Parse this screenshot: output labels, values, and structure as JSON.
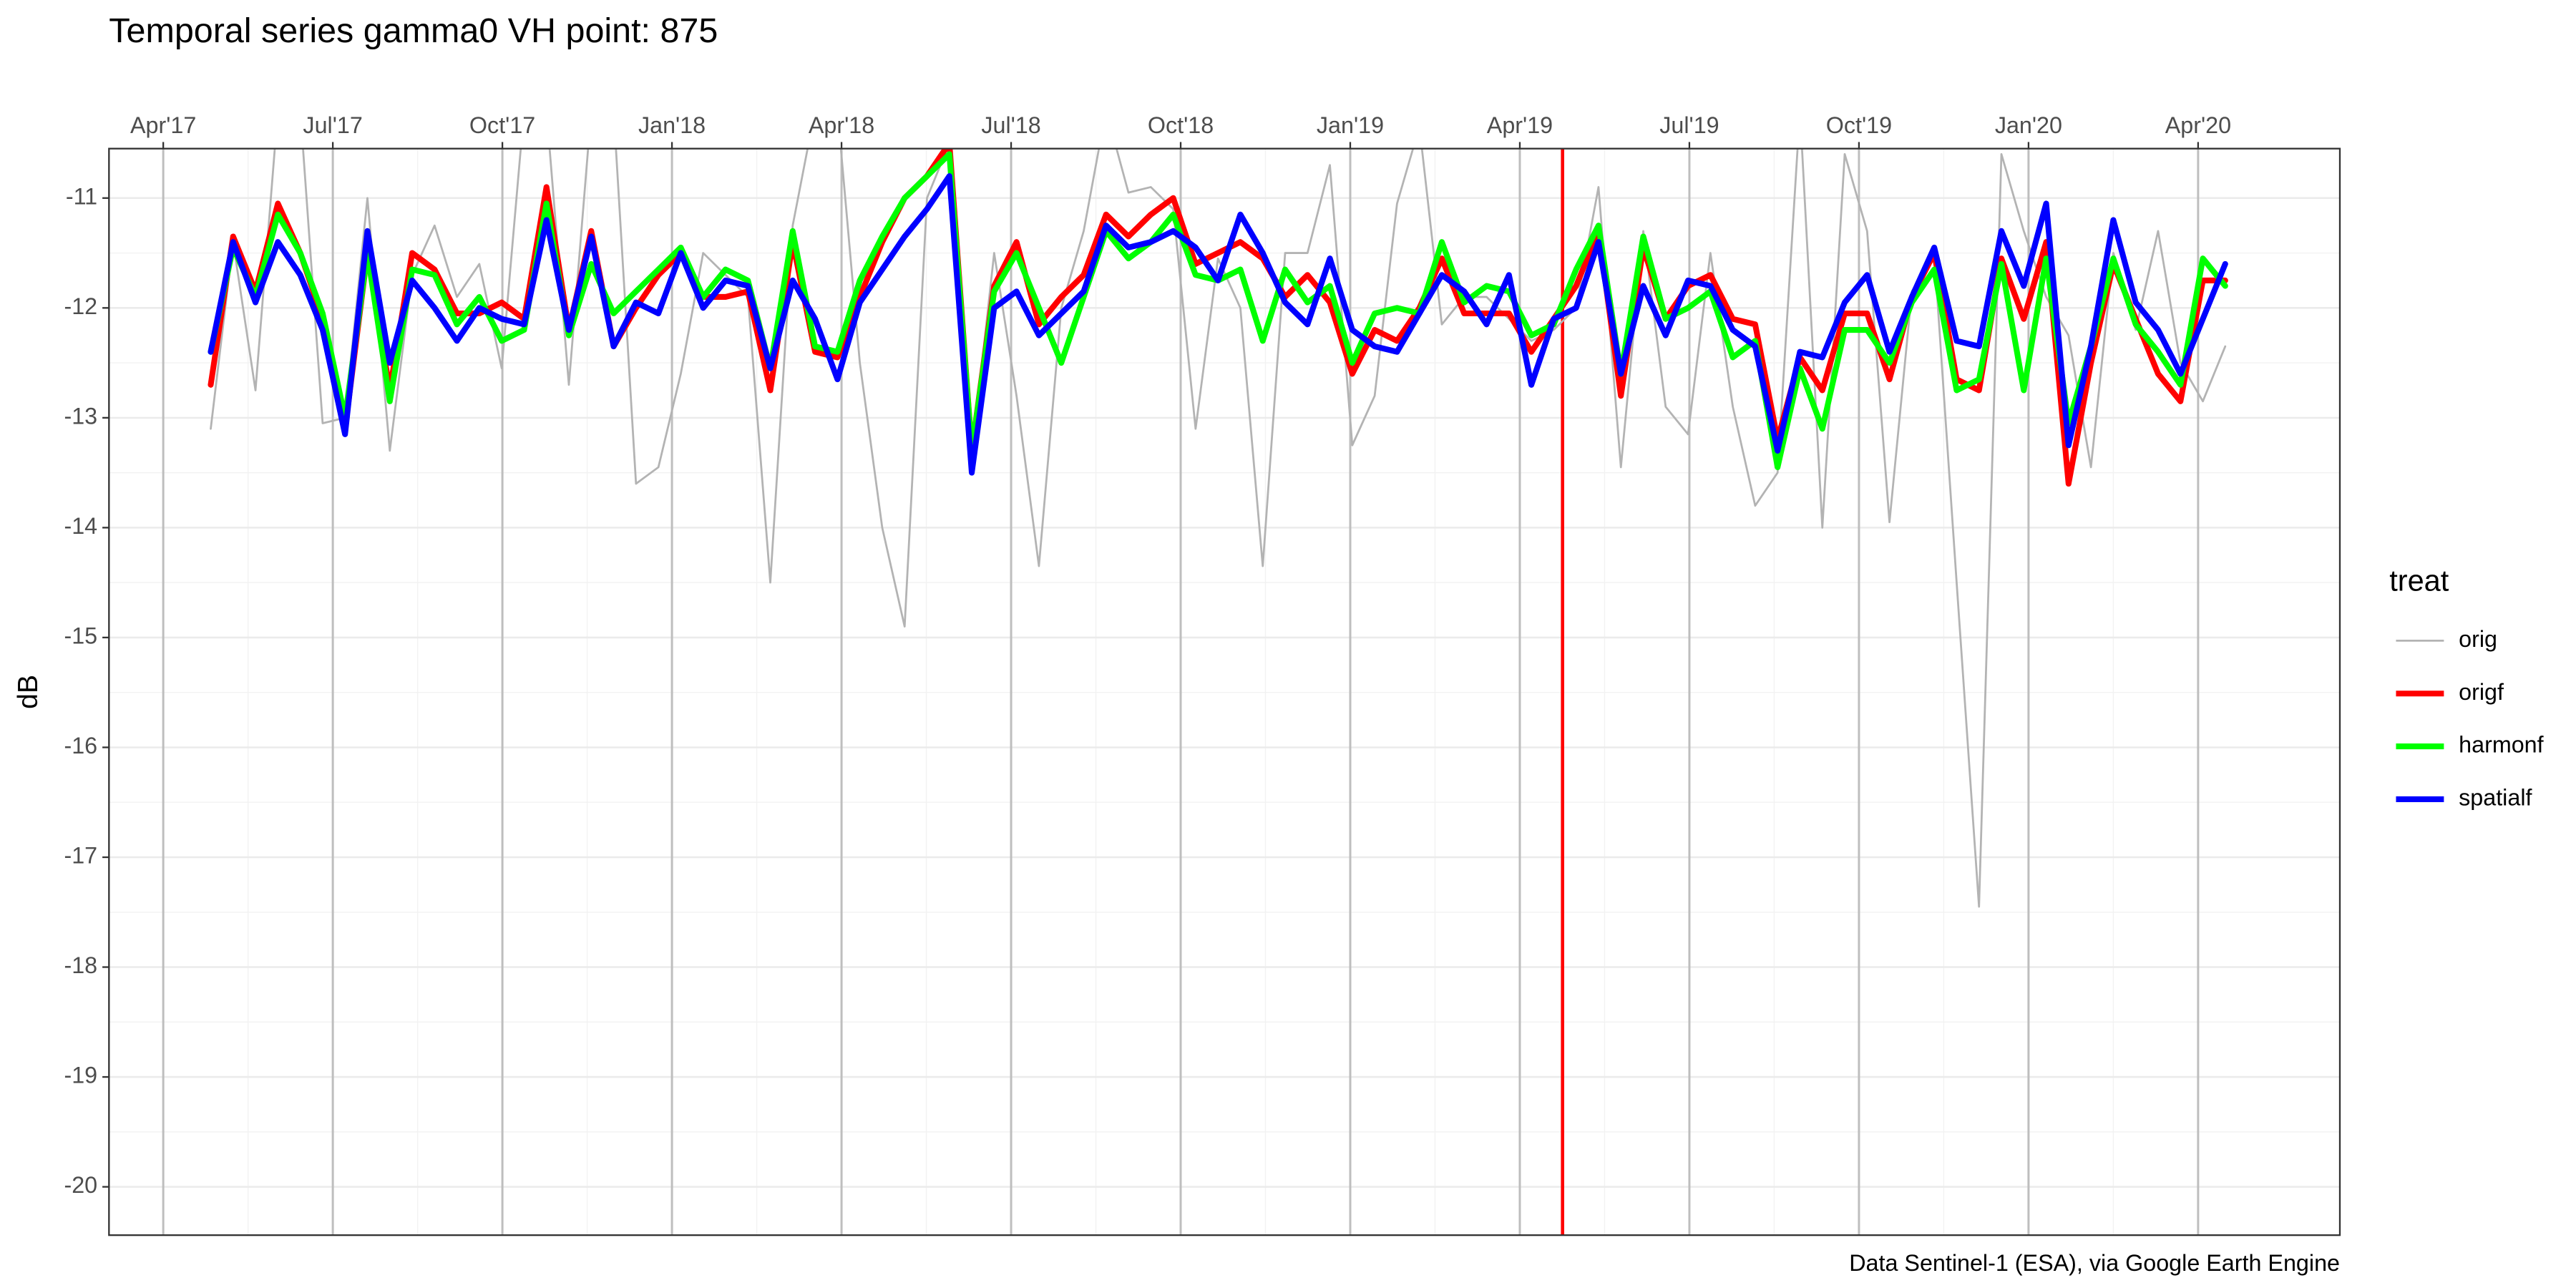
{
  "chart_data": {
    "type": "line",
    "title": "Temporal series gamma0 VH point: 875",
    "y_label": "dB",
    "caption": "Data Sentinel-1 (ESA), via Google Earth Engine",
    "legend_title": "treat",
    "legend": "right",
    "grid": true,
    "x_axis_position": "top",
    "xlim": [
      2017.17,
      2020.459
    ],
    "ylim": [
      -20.44,
      -10.55
    ],
    "xticks": [
      {
        "value": 2017.25,
        "label": "Apr'17"
      },
      {
        "value": 2017.5,
        "label": "Jul'17"
      },
      {
        "value": 2017.75,
        "label": "Oct'17"
      },
      {
        "value": 2018.0,
        "label": "Jan'18"
      },
      {
        "value": 2018.25,
        "label": "Apr'18"
      },
      {
        "value": 2018.5,
        "label": "Jul'18"
      },
      {
        "value": 2018.75,
        "label": "Oct'18"
      },
      {
        "value": 2019.0,
        "label": "Jan'19"
      },
      {
        "value": 2019.25,
        "label": "Apr'19"
      },
      {
        "value": 2019.5,
        "label": "Jul'19"
      },
      {
        "value": 2019.75,
        "label": "Oct'19"
      },
      {
        "value": 2020.0,
        "label": "Jan'20"
      },
      {
        "value": 2020.25,
        "label": "Apr'20"
      }
    ],
    "yticks": [
      -20,
      -19,
      -18,
      -17,
      -16,
      -15,
      -14,
      -13,
      -12,
      -11
    ],
    "vline": {
      "value": 2019.313,
      "color": "#ff0000"
    },
    "x": [
      2017.32,
      2017.353,
      2017.386,
      2017.419,
      2017.452,
      2017.485,
      2017.518,
      2017.551,
      2017.584,
      2017.617,
      2017.65,
      2017.683,
      2017.716,
      2017.749,
      2017.782,
      2017.815,
      2017.848,
      2017.881,
      2017.914,
      2017.947,
      2017.98,
      2018.013,
      2018.046,
      2018.079,
      2018.112,
      2018.145,
      2018.178,
      2018.211,
      2018.244,
      2018.277,
      2018.31,
      2018.343,
      2018.376,
      2018.409,
      2018.442,
      2018.475,
      2018.508,
      2018.541,
      2018.574,
      2018.607,
      2018.64,
      2018.673,
      2018.706,
      2018.739,
      2018.772,
      2018.805,
      2018.838,
      2018.871,
      2018.904,
      2018.937,
      2018.97,
      2019.003,
      2019.036,
      2019.069,
      2019.102,
      2019.135,
      2019.168,
      2019.201,
      2019.234,
      2019.267,
      2019.3,
      2019.333,
      2019.366,
      2019.399,
      2019.432,
      2019.465,
      2019.498,
      2019.531,
      2019.564,
      2019.597,
      2019.63,
      2019.663,
      2019.696,
      2019.729,
      2019.762,
      2019.795,
      2019.828,
      2019.861,
      2019.894,
      2019.927,
      2019.96,
      2019.993,
      2020.026,
      2020.059,
      2020.092,
      2020.125,
      2020.158,
      2020.191,
      2020.224,
      2020.257,
      2020.29
    ],
    "series": [
      {
        "name": "orig",
        "color": "#b3b3b3",
        "values": [
          -13.1,
          -11.4,
          -12.75,
          -10.2,
          -10.2,
          -13.05,
          -13.0,
          -11.0,
          -13.3,
          -11.7,
          -11.25,
          -11.9,
          -11.6,
          -12.55,
          -10.2,
          -10.2,
          -12.7,
          -10.2,
          -10.2,
          -13.6,
          -13.45,
          -12.6,
          -11.5,
          -11.7,
          -11.9,
          -14.5,
          -11.25,
          -10.2,
          -10.2,
          -12.5,
          -14.0,
          -14.9,
          -11.0,
          -10.5,
          -13.35,
          -11.5,
          -12.8,
          -14.35,
          -12.0,
          -11.3,
          -10.2,
          -10.95,
          -10.9,
          -11.1,
          -13.1,
          -11.55,
          -12.0,
          -14.35,
          -11.5,
          -11.5,
          -10.7,
          -13.25,
          -12.8,
          -11.05,
          -10.35,
          -12.15,
          -11.9,
          -11.9,
          -12.1,
          -12.3,
          -12.2,
          -12.0,
          -10.9,
          -13.45,
          -11.3,
          -12.9,
          -13.15,
          -11.5,
          -12.9,
          -13.8,
          -13.5,
          -10.2,
          -14.0,
          -10.6,
          -11.3,
          -13.95,
          -11.85,
          -11.5,
          -14.5,
          -17.45,
          -10.6,
          -11.3,
          -11.9,
          -12.25,
          -13.45,
          -11.5,
          -12.2,
          -11.3,
          -12.5,
          -12.85,
          -12.35
        ]
      },
      {
        "name": "origf",
        "color": "#ff0000",
        "values": [
          -12.7,
          -11.35,
          -11.85,
          -11.05,
          -11.5,
          -12.1,
          -13.1,
          -11.5,
          -12.75,
          -11.5,
          -11.65,
          -12.05,
          -12.05,
          -11.95,
          -12.1,
          -10.9,
          -12.2,
          -11.3,
          -12.35,
          -12.0,
          -11.7,
          -11.5,
          -11.9,
          -11.9,
          -11.85,
          -12.75,
          -11.4,
          -12.4,
          -12.45,
          -11.9,
          -11.4,
          -11.0,
          -10.8,
          -10.5,
          -13.3,
          -11.8,
          -11.4,
          -12.15,
          -11.9,
          -11.7,
          -11.15,
          -11.35,
          -11.15,
          -11.0,
          -11.6,
          -11.5,
          -11.4,
          -11.55,
          -11.9,
          -11.7,
          -11.95,
          -12.6,
          -12.2,
          -12.3,
          -12.0,
          -11.55,
          -12.05,
          -12.05,
          -12.05,
          -12.4,
          -12.1,
          -11.8,
          -11.3,
          -12.8,
          -11.45,
          -12.1,
          -11.8,
          -11.7,
          -12.1,
          -12.15,
          -13.2,
          -12.45,
          -12.75,
          -12.05,
          -12.05,
          -12.65,
          -11.9,
          -11.5,
          -12.65,
          -12.75,
          -11.55,
          -12.1,
          -11.4,
          -13.6,
          -12.5,
          -11.6,
          -12.1,
          -12.6,
          -12.85,
          -11.75,
          -11.75
        ]
      },
      {
        "name": "harmonf",
        "color": "#00ff00",
        "values": [
          -12.4,
          -11.45,
          -11.9,
          -11.15,
          -11.5,
          -12.05,
          -13.0,
          -11.5,
          -12.85,
          -11.65,
          -11.7,
          -12.15,
          -11.9,
          -12.3,
          -12.2,
          -11.05,
          -12.25,
          -11.6,
          -12.05,
          -11.85,
          -11.65,
          -11.45,
          -11.9,
          -11.65,
          -11.75,
          -12.55,
          -11.3,
          -12.35,
          -12.4,
          -11.75,
          -11.35,
          -11.0,
          -10.8,
          -10.6,
          -13.3,
          -11.85,
          -11.5,
          -12.0,
          -12.5,
          -11.9,
          -11.3,
          -11.55,
          -11.4,
          -11.15,
          -11.7,
          -11.75,
          -11.65,
          -12.3,
          -11.65,
          -11.95,
          -11.8,
          -12.5,
          -12.05,
          -12.0,
          -12.05,
          -11.4,
          -11.95,
          -11.8,
          -11.85,
          -12.25,
          -12.15,
          -11.65,
          -11.25,
          -12.6,
          -11.35,
          -12.1,
          -12.0,
          -11.85,
          -12.45,
          -12.3,
          -13.45,
          -12.55,
          -13.1,
          -12.2,
          -12.2,
          -12.5,
          -11.95,
          -11.65,
          -12.75,
          -12.65,
          -11.6,
          -12.75,
          -11.55,
          -13.05,
          -12.35,
          -11.55,
          -12.15,
          -12.4,
          -12.7,
          -11.55,
          -11.8
        ]
      },
      {
        "name": "spatialf",
        "color": "#0000ff",
        "values": [
          -12.4,
          -11.4,
          -11.95,
          -11.4,
          -11.7,
          -12.2,
          -13.15,
          -11.3,
          -12.5,
          -11.75,
          -12.0,
          -12.3,
          -12.0,
          -12.1,
          -12.15,
          -11.2,
          -12.2,
          -11.35,
          -12.35,
          -11.95,
          -12.05,
          -11.5,
          -12.0,
          -11.75,
          -11.8,
          -12.55,
          -11.75,
          -12.1,
          -12.65,
          -11.95,
          -11.65,
          -11.35,
          -11.1,
          -10.8,
          -13.5,
          -12.0,
          -11.85,
          -12.25,
          -12.05,
          -11.85,
          -11.25,
          -11.45,
          -11.4,
          -11.3,
          -11.45,
          -11.75,
          -11.15,
          -11.5,
          -11.95,
          -12.15,
          -11.55,
          -12.2,
          -12.35,
          -12.4,
          -12.05,
          -11.7,
          -11.85,
          -12.15,
          -11.7,
          -12.7,
          -12.1,
          -12.0,
          -11.4,
          -12.6,
          -11.8,
          -12.25,
          -11.75,
          -11.8,
          -12.2,
          -12.35,
          -13.3,
          -12.4,
          -12.45,
          -11.95,
          -11.7,
          -12.4,
          -11.9,
          -11.45,
          -12.3,
          -12.35,
          -11.3,
          -11.8,
          -11.05,
          -13.25,
          -12.35,
          -11.2,
          -11.95,
          -12.2,
          -12.6,
          -12.1,
          -11.6
        ]
      }
    ]
  }
}
